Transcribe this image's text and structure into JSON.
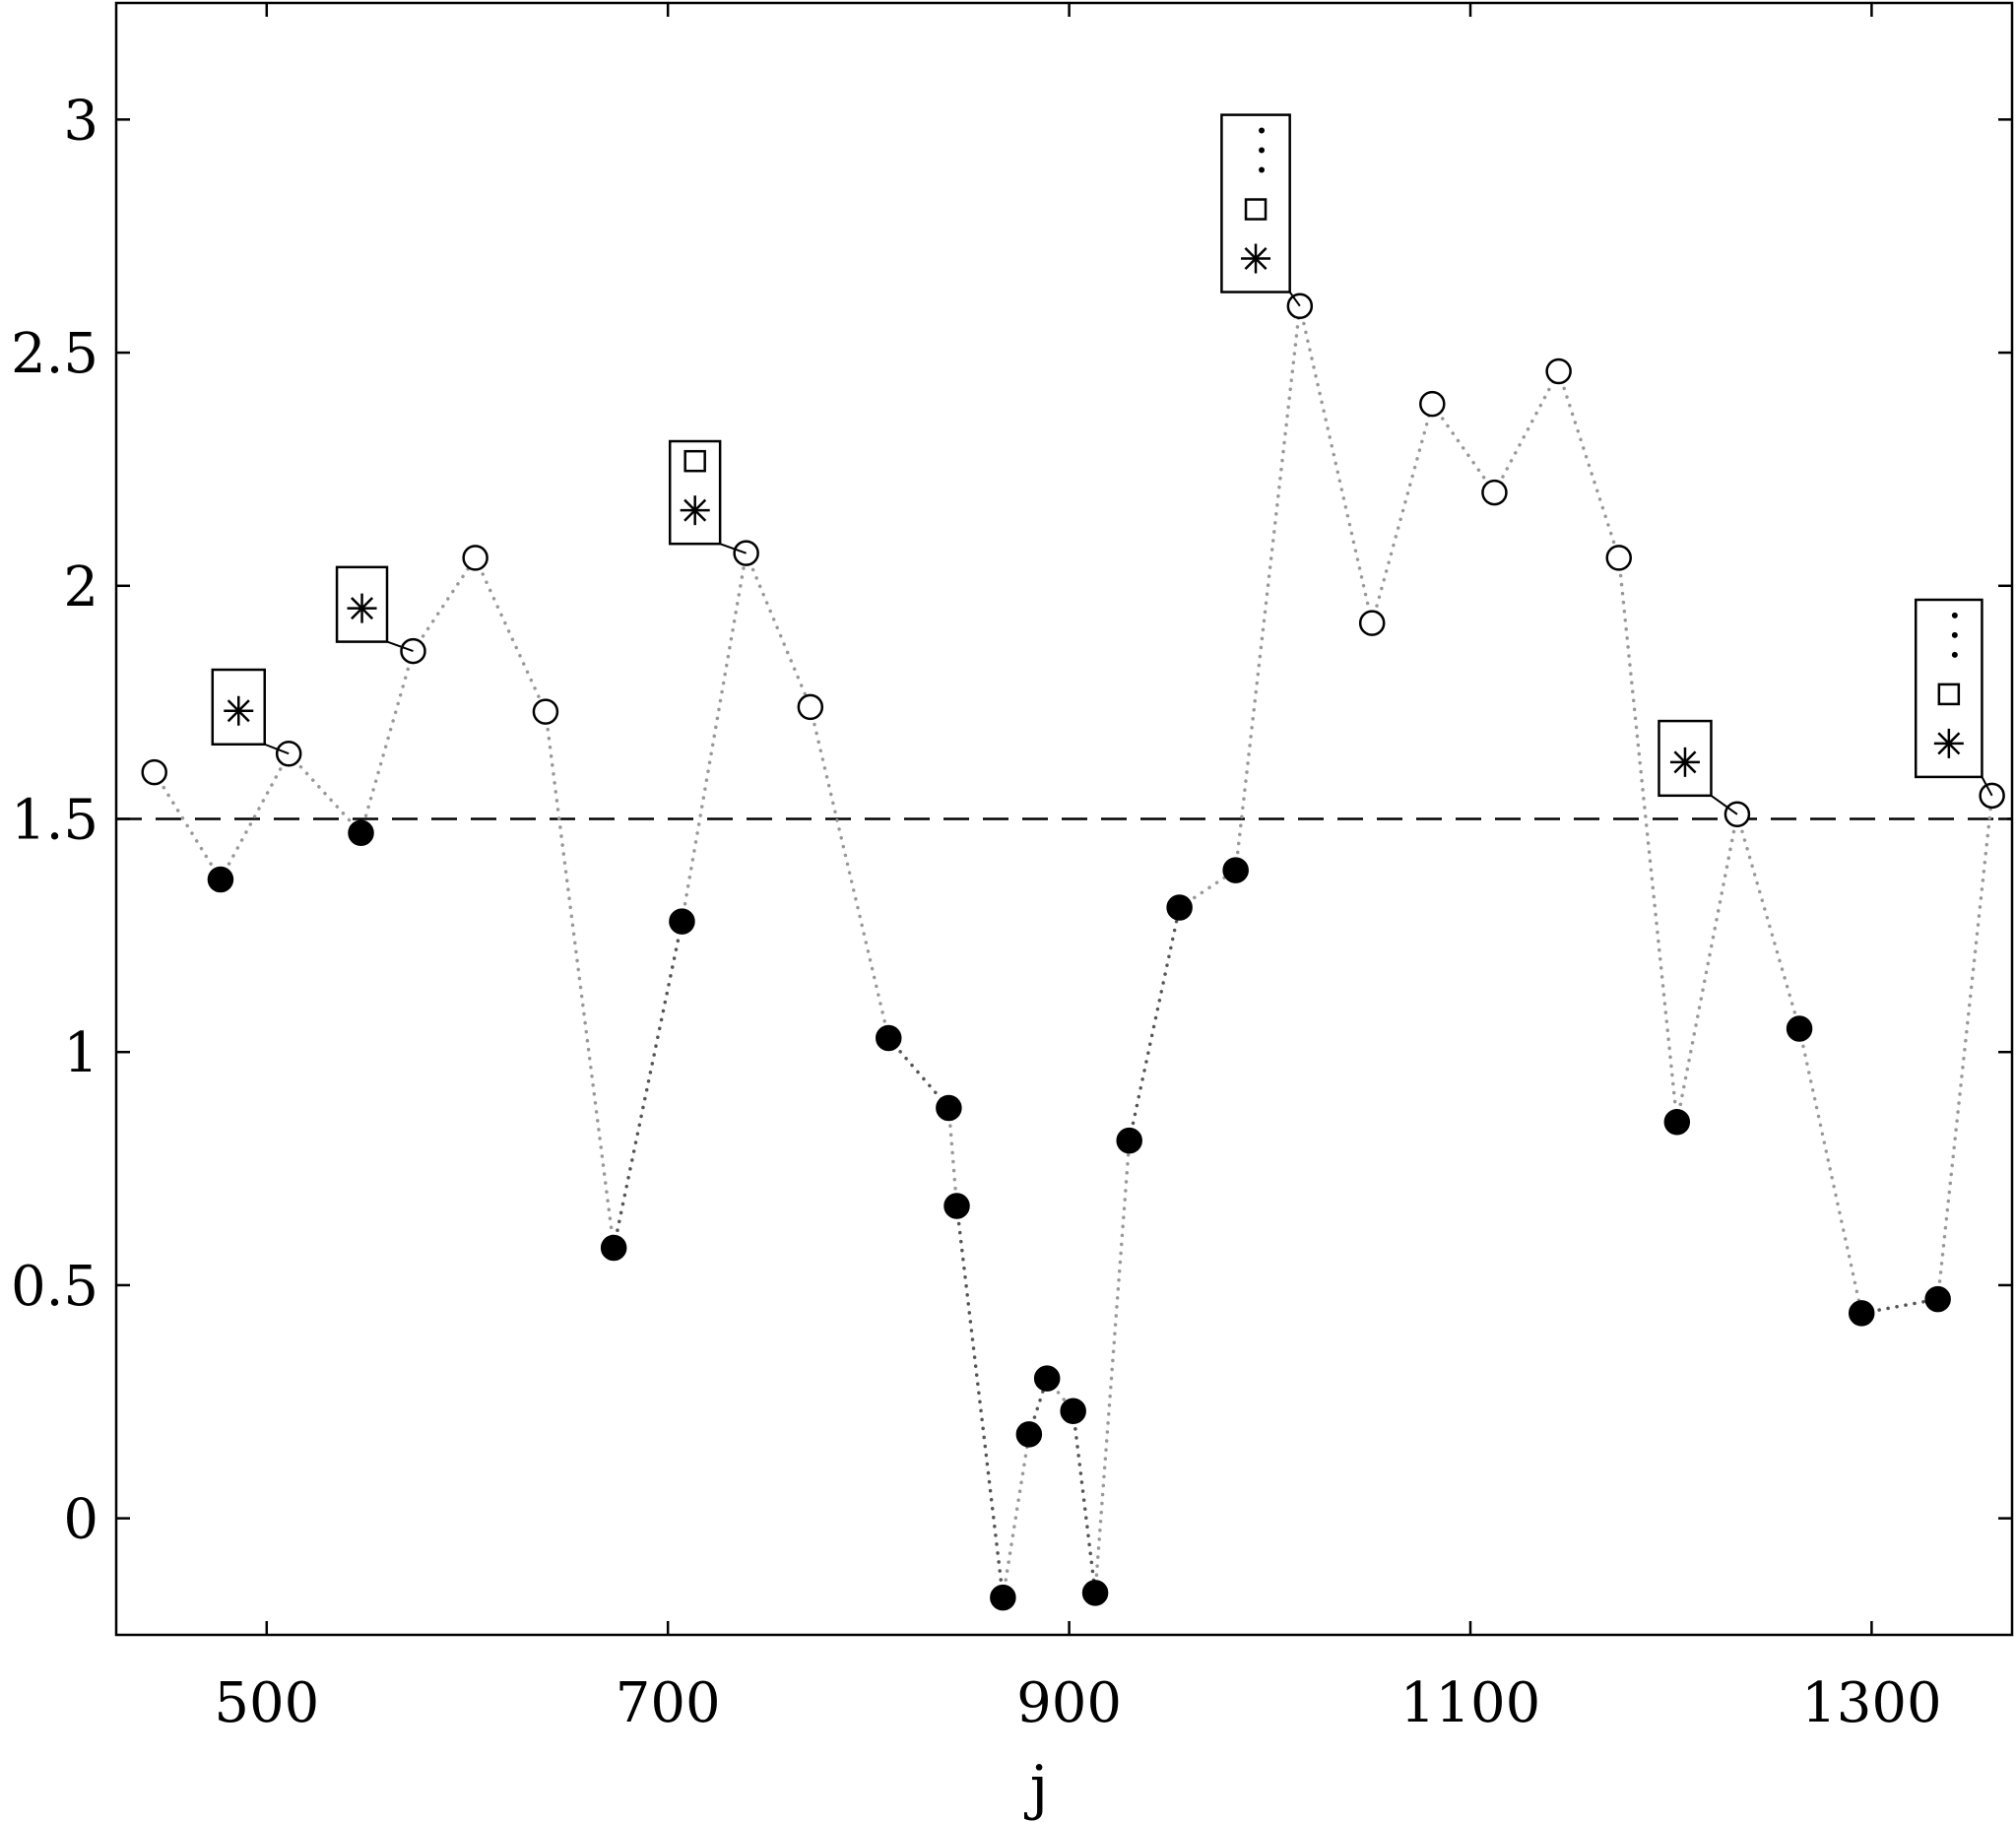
{
  "chart_data": {
    "type": "scatter",
    "xlabel": "j",
    "ylabel": "",
    "xlim": [
      425,
      1370
    ],
    "ylim": [
      -0.25,
      3.25
    ],
    "xticks": [
      {
        "value": 500,
        "label": "500"
      },
      {
        "value": 700,
        "label": "700"
      },
      {
        "value": 900,
        "label": "900"
      },
      {
        "value": 1100,
        "label": "1100"
      },
      {
        "value": 1300,
        "label": "1300"
      }
    ],
    "yticks": [
      {
        "value": 0,
        "label": "0"
      },
      {
        "value": 0.5,
        "label": "0.5"
      },
      {
        "value": 1,
        "label": "1"
      },
      {
        "value": 1.5,
        "label": "1.5"
      },
      {
        "value": 2,
        "label": "2"
      },
      {
        "value": 2.5,
        "label": "2.5"
      },
      {
        "value": 3,
        "label": "3"
      }
    ],
    "reference_line": {
      "y": 1.5,
      "style": "dashed"
    },
    "points": [
      {
        "x": 444,
        "y": 1.6,
        "filled": false
      },
      {
        "x": 477,
        "y": 1.37,
        "filled": true
      },
      {
        "x": 511,
        "y": 1.64,
        "filled": false
      },
      {
        "x": 547,
        "y": 1.47,
        "filled": true
      },
      {
        "x": 573,
        "y": 1.86,
        "filled": false
      },
      {
        "x": 604,
        "y": 2.06,
        "filled": false
      },
      {
        "x": 639,
        "y": 1.73,
        "filled": false
      },
      {
        "x": 673,
        "y": 0.58,
        "filled": true
      },
      {
        "x": 707,
        "y": 1.28,
        "filled": true
      },
      {
        "x": 739,
        "y": 2.07,
        "filled": false
      },
      {
        "x": 771,
        "y": 1.74,
        "filled": false
      },
      {
        "x": 810,
        "y": 1.03,
        "filled": true
      },
      {
        "x": 840,
        "y": 0.88,
        "filled": true
      },
      {
        "x": 844,
        "y": 0.67,
        "filled": true
      },
      {
        "x": 867,
        "y": -0.17,
        "filled": true
      },
      {
        "x": 880,
        "y": 0.18,
        "filled": true
      },
      {
        "x": 889,
        "y": 0.3,
        "filled": true
      },
      {
        "x": 902,
        "y": 0.23,
        "filled": true
      },
      {
        "x": 913,
        "y": -0.16,
        "filled": true
      },
      {
        "x": 930,
        "y": 0.81,
        "filled": true
      },
      {
        "x": 955,
        "y": 1.31,
        "filled": true
      },
      {
        "x": 983,
        "y": 1.39,
        "filled": true
      },
      {
        "x": 1015,
        "y": 2.6,
        "filled": false
      },
      {
        "x": 1051,
        "y": 1.92,
        "filled": false
      },
      {
        "x": 1081,
        "y": 2.39,
        "filled": false
      },
      {
        "x": 1112,
        "y": 2.2,
        "filled": false
      },
      {
        "x": 1144,
        "y": 2.46,
        "filled": false
      },
      {
        "x": 1174,
        "y": 2.06,
        "filled": false
      },
      {
        "x": 1203,
        "y": 0.85,
        "filled": true
      },
      {
        "x": 1233,
        "y": 1.51,
        "filled": false
      },
      {
        "x": 1264,
        "y": 1.05,
        "filled": true
      },
      {
        "x": 1295,
        "y": 0.44,
        "filled": true
      },
      {
        "x": 1333,
        "y": 0.47,
        "filled": true
      },
      {
        "x": 1360,
        "y": 1.55,
        "filled": false
      }
    ],
    "annotations": [
      {
        "point_x": 511,
        "point_y": 1.64,
        "box_x": [
          473,
          499
        ],
        "box_y": [
          1.66,
          1.82
        ],
        "symbols": [
          "asterisk"
        ]
      },
      {
        "point_x": 573,
        "point_y": 1.86,
        "box_x": [
          535,
          560
        ],
        "box_y": [
          1.88,
          2.04
        ],
        "symbols": [
          "asterisk"
        ]
      },
      {
        "point_x": 739,
        "point_y": 2.07,
        "box_x": [
          701,
          726
        ],
        "box_y": [
          2.09,
          2.31
        ],
        "symbols": [
          "asterisk",
          "square"
        ]
      },
      {
        "point_x": 1015,
        "point_y": 2.6,
        "box_x": [
          976,
          1010
        ],
        "box_y": [
          2.63,
          3.01
        ],
        "symbols": [
          "asterisk",
          "square",
          "ellipsis"
        ]
      },
      {
        "point_x": 1233,
        "point_y": 1.51,
        "box_x": [
          1194,
          1220
        ],
        "box_y": [
          1.55,
          1.71
        ],
        "symbols": [
          "asterisk"
        ]
      },
      {
        "point_x": 1360,
        "point_y": 1.55,
        "box_x": [
          1322,
          1355
        ],
        "box_y": [
          1.59,
          1.97
        ],
        "symbols": [
          "asterisk",
          "square",
          "ellipsis"
        ]
      }
    ]
  }
}
